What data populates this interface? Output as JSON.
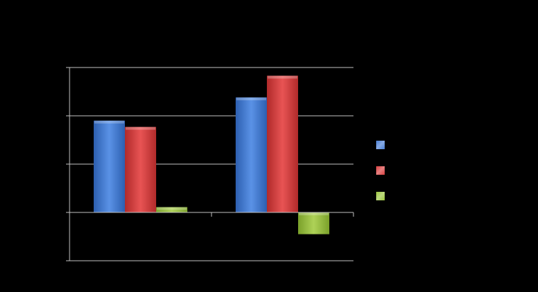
{
  "chart_data": {
    "type": "bar",
    "categories": [
      "",
      ""
    ],
    "series": [
      {
        "values": [
          1.9,
          2.38
        ],
        "color": "#4a7fd6"
      },
      {
        "values": [
          1.77,
          2.83
        ],
        "color": "#d94040"
      },
      {
        "values": [
          0.11,
          -0.45
        ],
        "color": "#9bc53d"
      }
    ],
    "ylim": [
      -1,
      3
    ],
    "yticks": [
      -1,
      0,
      1,
      2,
      3
    ],
    "grid": true,
    "legend": "right",
    "axis_color": "#bfbfbf"
  }
}
